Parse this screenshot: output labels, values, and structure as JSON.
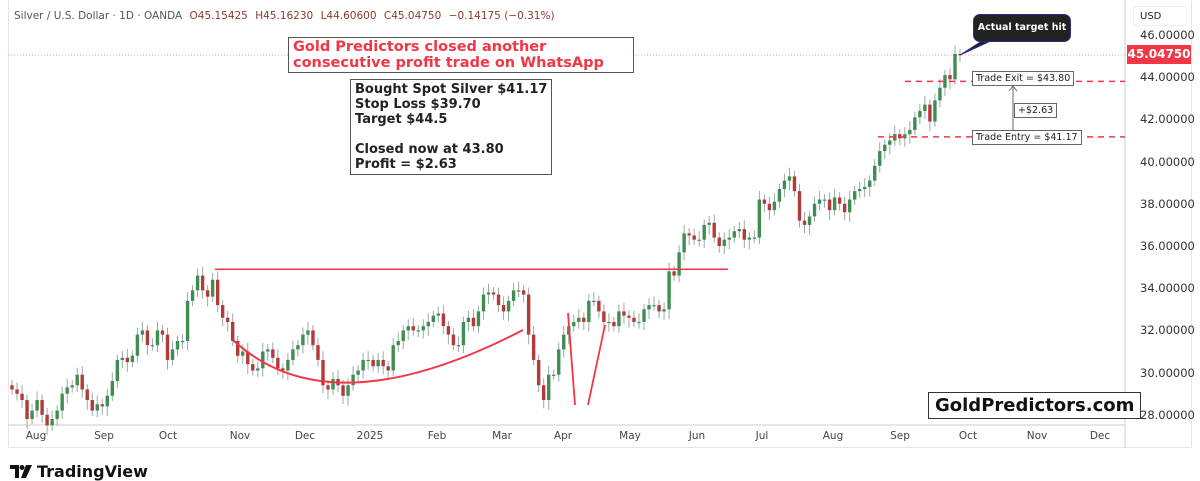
{
  "header": {
    "symbol": "Silver / U.S. Dollar · 1D · OANDA",
    "open": "O45.15425",
    "high": "H45.16230",
    "low": "L44.60600",
    "close": "C45.04750",
    "change": "−0.14175 (−0.31%)"
  },
  "axis": {
    "currency": "USD",
    "last_price": "45.04750",
    "last_price_color": "#f23645"
  },
  "annotations": {
    "headline": "Gold Predictors closed another consecutive profit trade on WhatsApp",
    "details": [
      "Bought Spot Silver $41.17",
      "Stop Loss $39.70",
      "Target $44.5",
      "Closed now at 43.80",
      "Profit = $2.63"
    ],
    "trade_exit": "Trade Exit = $43.80",
    "trade_entry": "Trade Entry = $41.17",
    "gain": "+$2.63",
    "callout": "Actual target hit",
    "watermark": "GoldPredictors.com"
  },
  "footer": {
    "logo": "TradingView"
  },
  "chart_data": {
    "type": "candlestick",
    "title": "",
    "xlabel": "",
    "ylabel": "",
    "ylim": [
      27.3,
      46.6
    ],
    "y_ticks": [
      "46.00000",
      "44.00000",
      "42.00000",
      "40.00000",
      "38.00000",
      "36.00000",
      "34.00000",
      "32.00000",
      "30.00000",
      "28.00000"
    ],
    "x_ticks": [
      "Aug",
      "Sep",
      "Oct",
      "Nov",
      "Dec",
      "2025",
      "Feb",
      "Mar",
      "Apr",
      "May",
      "Jun",
      "Jul",
      "Aug",
      "Sep",
      "Oct",
      "Nov",
      "Dec"
    ],
    "colors": {
      "up": "#3f8d52",
      "down": "#b23a3a",
      "annotation": "#f23645"
    },
    "closes": [
      29.2,
      29.0,
      28.7,
      27.8,
      28.2,
      28.7,
      28.0,
      27.5,
      27.8,
      28.2,
      29.0,
      29.3,
      29.4,
      29.9,
      29.2,
      28.7,
      28.2,
      28.5,
      28.4,
      28.9,
      29.6,
      30.6,
      30.7,
      30.5,
      30.8,
      31.8,
      32.0,
      31.3,
      31.3,
      32.0,
      31.8,
      30.6,
      31.1,
      31.5,
      31.5,
      33.4,
      33.9,
      34.6,
      33.9,
      33.6,
      34.4,
      33.2,
      32.6,
      32.4,
      31.5,
      30.8,
      31.0,
      30.4,
      30.1,
      30.2,
      31.0,
      31.1,
      30.7,
      30.2,
      30.1,
      30.6,
      31.1,
      31.3,
      31.8,
      32.0,
      31.3,
      30.6,
      29.4,
      29.2,
      29.7,
      29.4,
      28.9,
      29.4,
      29.9,
      30.1,
      30.6,
      30.6,
      30.3,
      30.6,
      30.3,
      30.1,
      31.3,
      31.5,
      32.0,
      32.2,
      32.0,
      32.0,
      32.2,
      32.4,
      32.7,
      32.8,
      32.2,
      31.8,
      31.3,
      31.3,
      32.4,
      32.6,
      32.2,
      32.9,
      33.7,
      33.8,
      33.7,
      33.2,
      32.9,
      33.4,
      33.9,
      33.9,
      33.7,
      31.8,
      30.6,
      29.4,
      28.7,
      29.9,
      29.9,
      31.1,
      31.8,
      32.2,
      32.4,
      32.6,
      32.4,
      33.4,
      33.4,
      32.9,
      32.4,
      32.4,
      32.2,
      32.9,
      32.7,
      32.6,
      32.4,
      32.4,
      33.0,
      33.2,
      33.2,
      32.9,
      33.0,
      34.8,
      34.6,
      35.7,
      36.6,
      36.5,
      36.3,
      36.3,
      37.0,
      37.1,
      36.4,
      36.0,
      36.3,
      36.4,
      36.7,
      36.8,
      36.3,
      36.4,
      36.4,
      38.2,
      38.0,
      37.7,
      38.1,
      38.7,
      39.1,
      39.3,
      38.6,
      37.2,
      37.0,
      37.4,
      38.0,
      38.2,
      38.2,
      37.7,
      38.3,
      38.0,
      37.6,
      38.2,
      38.6,
      38.7,
      38.8,
      39.1,
      39.8,
      40.5,
      40.8,
      41.0,
      41.3,
      41.1,
      41.3,
      41.5,
      42.1,
      42.4,
      42.7,
      41.9,
      42.9,
      43.5,
      44.1,
      43.9,
      45.1,
      45.0475
    ],
    "resistance": 34.9,
    "trade_exit_level": 43.8,
    "trade_entry_level": 41.17
  }
}
